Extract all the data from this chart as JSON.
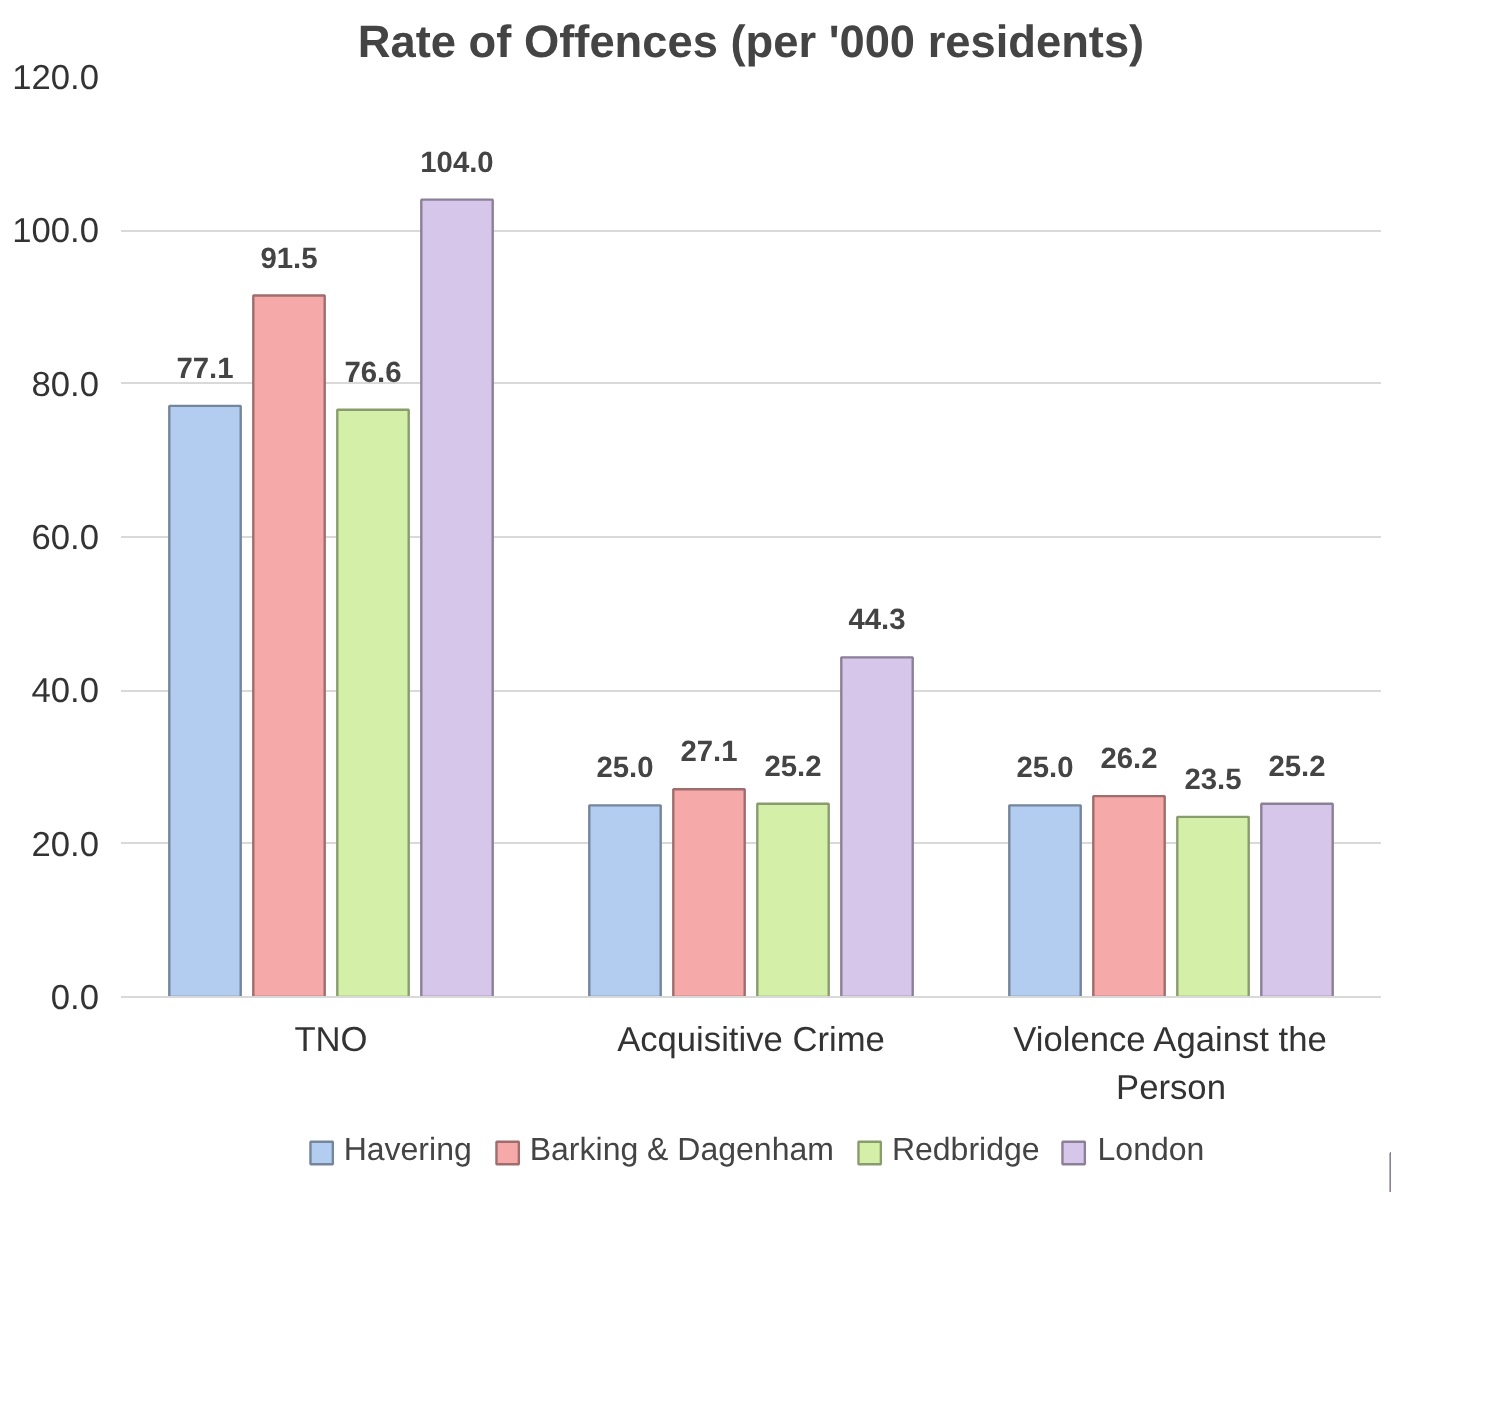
{
  "chart_data": {
    "type": "bar",
    "title": "Rate of Offences (per '000 residents)",
    "categories": [
      "TNO",
      "Acquisitive Crime",
      "Violence Against the Person"
    ],
    "series": [
      {
        "name": "Havering",
        "color": "#b3cdf0",
        "values": [
          77.1,
          25.0,
          25.0
        ]
      },
      {
        "name": "Barking & Dagenham",
        "color": "#f5a9a8",
        "values": [
          91.5,
          27.1,
          26.2
        ]
      },
      {
        "name": "Redbridge",
        "color": "#d4f0a8",
        "values": [
          76.6,
          25.2,
          23.5
        ]
      },
      {
        "name": "London",
        "color": "#d6c6ea",
        "values": [
          104.0,
          44.3,
          25.2
        ]
      }
    ],
    "ylim": [
      0,
      120
    ],
    "yticks": [
      {
        "value": 0,
        "label": "0.0"
      },
      {
        "value": 20,
        "label": "20.0"
      },
      {
        "value": 40,
        "label": "40.0"
      },
      {
        "value": 60,
        "label": "60.0"
      },
      {
        "value": 80,
        "label": "80.0"
      },
      {
        "value": 100,
        "label": "100.0"
      },
      {
        "value": 120,
        "label": "120.0"
      }
    ],
    "value_labels": [
      [
        "77.1",
        "25.0",
        "25.0"
      ],
      [
        "91.5",
        "27.1",
        "26.2"
      ],
      [
        "76.6",
        "25.2",
        "23.5"
      ],
      [
        "104.0",
        "44.3",
        "25.2"
      ]
    ],
    "grid": "y",
    "legend": "bottom"
  }
}
